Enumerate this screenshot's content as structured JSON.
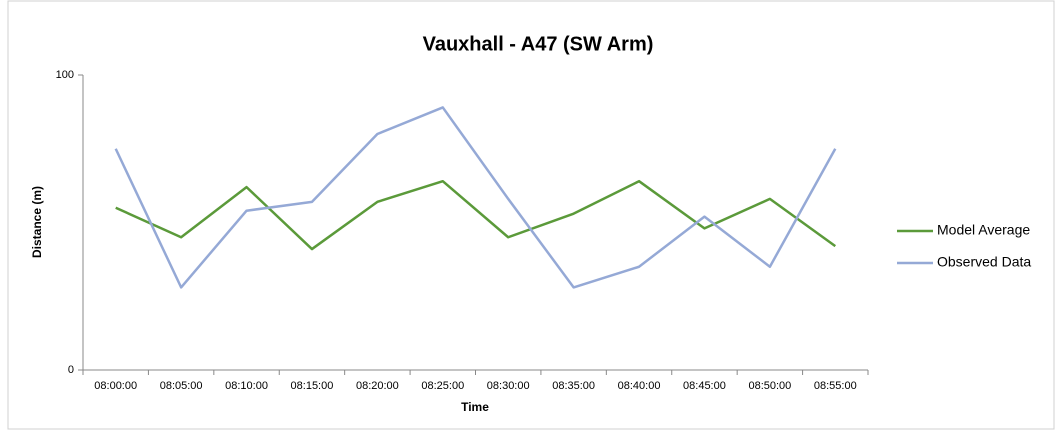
{
  "chart_data": {
    "type": "line",
    "title": "Vauxhall - A47 (SW Arm)",
    "x_label": "Time",
    "y_label": "Distance (m)",
    "categories": [
      "08:00:00",
      "08:05:00",
      "08:10:00",
      "08:15:00",
      "08:20:00",
      "08:25:00",
      "08:30:00",
      "08:35:00",
      "08:40:00",
      "08:45:00",
      "08:50:00",
      "08:55:00"
    ],
    "series": [
      {
        "name": "Model Average",
        "color": "#5b9a3a",
        "values": [
          55,
          45,
          62,
          41,
          57,
          64,
          45,
          53,
          64,
          48,
          58,
          42
        ]
      },
      {
        "name": "Observed Data",
        "color": "#95a9d6",
        "values": [
          75,
          28,
          54,
          57,
          80,
          89,
          58,
          28,
          35,
          52,
          35,
          75
        ]
      }
    ],
    "ylim": [
      0,
      100
    ],
    "yticks": [
      0,
      100
    ],
    "legend": "right",
    "grid": false
  }
}
